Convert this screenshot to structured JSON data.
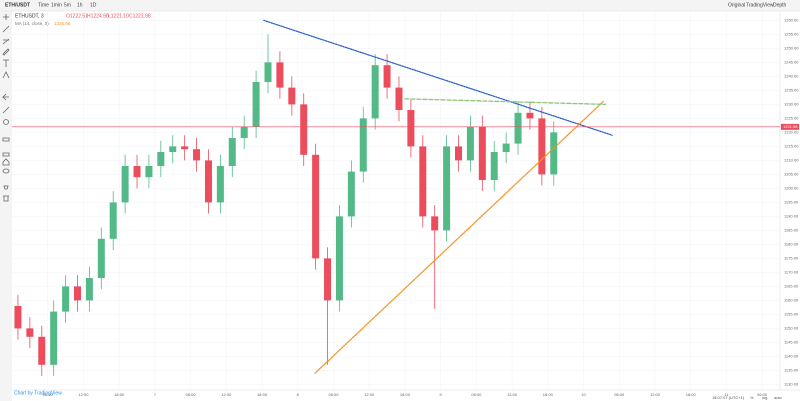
{
  "toolbar": {
    "symbol": "ETH/USDT",
    "intervals": [
      "Time",
      "1min",
      "5m",
      "1h",
      "1D"
    ],
    "views": [
      "Original",
      "TradingView",
      "Depth"
    ]
  },
  "footer": {
    "credit": "Chart by TradingView",
    "clock": "18:07:07 (UTC+1)",
    "scale_options": [
      "%",
      "log",
      "auto"
    ]
  },
  "chart_data": {
    "type": "candlestick",
    "title": "ETHUSDT, 3",
    "legend": [
      "O1222.51",
      "H1224.90",
      "L1221.10",
      "C1221.98"
    ],
    "indicator": {
      "name": "MA (14, close, 0)",
      "value": "1225.96",
      "color": "#f7931a"
    },
    "up_color": "#53b987",
    "down_color": "#eb4d5c",
    "x": [
      1,
      3,
      5,
      7,
      9,
      11,
      13,
      15,
      17,
      19,
      21,
      23,
      25,
      27,
      29,
      31,
      33,
      35,
      37,
      39,
      41,
      43,
      45,
      47,
      49,
      51,
      53,
      55,
      57,
      59,
      61,
      63,
      65,
      67,
      69,
      71,
      73,
      75,
      77,
      79,
      81,
      83,
      85,
      87,
      89,
      91
    ],
    "open": [
      1158,
      1150,
      1147,
      1137,
      1156,
      1165,
      1160,
      1168,
      1182,
      1195,
      1208,
      1204,
      1208,
      1213,
      1215,
      1214,
      1210,
      1195,
      1208,
      1218,
      1222,
      1238,
      1245,
      1236,
      1230,
      1212,
      1175,
      1160,
      1190,
      1206,
      1225,
      1244,
      1236,
      1228,
      1215,
      1190,
      1185,
      1215,
      1210,
      1222,
      1203,
      1213,
      1216,
      1227,
      1225,
      1205
    ],
    "high": [
      1162,
      1154,
      1151,
      1160,
      1169,
      1169,
      1172,
      1186,
      1199,
      1212,
      1212,
      1212,
      1217,
      1219,
      1219,
      1218,
      1214,
      1212,
      1222,
      1226,
      1242,
      1255,
      1249,
      1240,
      1234,
      1216,
      1179,
      1194,
      1210,
      1229,
      1248,
      1248,
      1240,
      1232,
      1219,
      1194,
      1219,
      1219,
      1226,
      1226,
      1217,
      1220,
      1231,
      1231,
      1229,
      1224
    ],
    "low": [
      1146,
      1143,
      1133,
      1133,
      1152,
      1156,
      1156,
      1164,
      1178,
      1191,
      1200,
      1200,
      1204,
      1209,
      1210,
      1206,
      1191,
      1191,
      1204,
      1214,
      1218,
      1234,
      1232,
      1226,
      1208,
      1171,
      1137,
      1156,
      1186,
      1202,
      1221,
      1232,
      1224,
      1211,
      1186,
      1157,
      1181,
      1206,
      1206,
      1199,
      1199,
      1209,
      1212,
      1221,
      1201,
      1201
    ],
    "close": [
      1150,
      1147,
      1137,
      1156,
      1165,
      1160,
      1168,
      1182,
      1195,
      1208,
      1204,
      1208,
      1213,
      1215,
      1214,
      1210,
      1195,
      1208,
      1218,
      1222,
      1238,
      1245,
      1236,
      1230,
      1212,
      1175,
      1160,
      1190,
      1206,
      1225,
      1244,
      1236,
      1228,
      1215,
      1190,
      1185,
      1215,
      1210,
      1222,
      1203,
      1213,
      1216,
      1227,
      1225,
      1205,
      1220
    ],
    "last_price": 1221.98,
    "last_price_color": "#eb4d5c",
    "trendlines": [
      {
        "color": "#2962c8",
        "style": "dotted",
        "x": [
          42.3,
          100.8
        ],
        "y": [
          1260,
          1219
        ]
      },
      {
        "color": "#f5921e",
        "style": "dotted",
        "x": [
          50.9,
          99.3
        ],
        "y": [
          1134,
          1231
        ]
      },
      {
        "color": "#8fc47a",
        "style": "dashed",
        "x": [
          66,
          99.7
        ],
        "y": [
          1232,
          1230
        ]
      }
    ],
    "xlim": [
      0,
      129
    ],
    "xticks": [
      {
        "value": 6,
        "label": "06:00"
      },
      {
        "value": 12,
        "label": "12:00"
      },
      {
        "value": 18,
        "label": "18:00"
      },
      {
        "value": 24,
        "label": "7"
      },
      {
        "value": 30,
        "label": "06:00"
      },
      {
        "value": 36,
        "label": "12:00"
      },
      {
        "value": 42,
        "label": "18:00"
      },
      {
        "value": 48,
        "label": "8"
      },
      {
        "value": 54,
        "label": "06:00"
      },
      {
        "value": 60,
        "label": "12:00"
      },
      {
        "value": 66,
        "label": "18:00"
      },
      {
        "value": 72,
        "label": "9"
      },
      {
        "value": 78,
        "label": "06:00"
      },
      {
        "value": 84,
        "label": "12:00"
      },
      {
        "value": 90,
        "label": "18:00"
      },
      {
        "value": 96,
        "label": "10"
      },
      {
        "value": 102,
        "label": "06:00"
      },
      {
        "value": 108,
        "label": "12:00"
      },
      {
        "value": 114,
        "label": "18:00"
      },
      {
        "value": 120,
        "label": "11"
      },
      {
        "value": 126,
        "label": "06:00"
      }
    ],
    "ylim": [
      1128,
      1263
    ],
    "yticks": [
      {
        "value": 1130,
        "label": "1130.00"
      },
      {
        "value": 1135,
        "label": "1135.00"
      },
      {
        "value": 1140,
        "label": "1140.00"
      },
      {
        "value": 1145,
        "label": "1145.00"
      },
      {
        "value": 1150,
        "label": "1150.00"
      },
      {
        "value": 1155,
        "label": "1155.00"
      },
      {
        "value": 1160,
        "label": "1160.00"
      },
      {
        "value": 1165,
        "label": "1165.00"
      },
      {
        "value": 1170,
        "label": "1170.00"
      },
      {
        "value": 1175,
        "label": "1175.00"
      },
      {
        "value": 1180,
        "label": "1180.00"
      },
      {
        "value": 1185,
        "label": "1185.00"
      },
      {
        "value": 1190,
        "label": "1190.00"
      },
      {
        "value": 1195,
        "label": "1195.00"
      },
      {
        "value": 1200,
        "label": "1200.00"
      },
      {
        "value": 1205,
        "label": "1205.00"
      },
      {
        "value": 1210,
        "label": "1210.00"
      },
      {
        "value": 1215,
        "label": "1215.00"
      },
      {
        "value": 1220,
        "label": "1220.00"
      },
      {
        "value": 1225,
        "label": "1225.00"
      },
      {
        "value": 1230,
        "label": "1230.00"
      },
      {
        "value": 1235,
        "label": "1235.00"
      },
      {
        "value": 1240,
        "label": "1240.00"
      },
      {
        "value": 1245,
        "label": "1245.00"
      },
      {
        "value": 1250,
        "label": "1250.00"
      },
      {
        "value": 1255,
        "label": "1255.00"
      },
      {
        "value": 1260,
        "label": "1260.00"
      }
    ],
    "grid": true
  }
}
